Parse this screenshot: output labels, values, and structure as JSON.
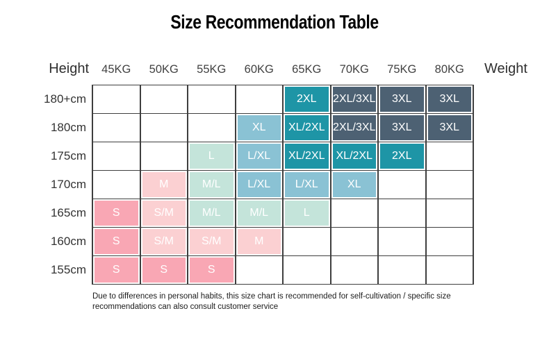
{
  "title": "Size Recommendation Table",
  "table": {
    "height_label": "Height",
    "weight_label": "Weight",
    "weights": [
      "45KG",
      "50KG",
      "55KG",
      "60KG",
      "65KG",
      "70KG",
      "75KG",
      "80KG"
    ],
    "rows": [
      {
        "height": "180+cm",
        "cells": [
          null,
          null,
          null,
          null,
          {
            "label": "2XL",
            "color": "teal"
          },
          {
            "label": "2XL/3XL",
            "color": "slate"
          },
          {
            "label": "3XL",
            "color": "slate"
          },
          {
            "label": "3XL",
            "color": "slate"
          }
        ]
      },
      {
        "height": "180cm",
        "cells": [
          null,
          null,
          null,
          {
            "label": "XL",
            "color": "blue"
          },
          {
            "label": "XL/2XL",
            "color": "teal"
          },
          {
            "label": "2XL/3XL",
            "color": "slate"
          },
          {
            "label": "3XL",
            "color": "slate"
          },
          {
            "label": "3XL",
            "color": "slate"
          }
        ]
      },
      {
        "height": "175cm",
        "cells": [
          null,
          null,
          {
            "label": "L",
            "color": "mint"
          },
          {
            "label": "L/XL",
            "color": "blue"
          },
          {
            "label": "XL/2XL",
            "color": "teal"
          },
          {
            "label": "XL/2XL",
            "color": "teal"
          },
          {
            "label": "2XL",
            "color": "teal"
          },
          null
        ]
      },
      {
        "height": "170cm",
        "cells": [
          null,
          {
            "label": "M",
            "color": "pink_light"
          },
          {
            "label": "M/L",
            "color": "mint"
          },
          {
            "label": "L/XL",
            "color": "blue"
          },
          {
            "label": "L/XL",
            "color": "blue"
          },
          {
            "label": "XL",
            "color": "blue"
          },
          null,
          null
        ]
      },
      {
        "height": "165cm",
        "cells": [
          {
            "label": "S",
            "color": "pink"
          },
          {
            "label": "S/M",
            "color": "pink_light"
          },
          {
            "label": "M/L",
            "color": "mint"
          },
          {
            "label": "M/L",
            "color": "mint"
          },
          {
            "label": "L",
            "color": "mint"
          },
          null,
          null,
          null
        ]
      },
      {
        "height": "160cm",
        "cells": [
          {
            "label": "S",
            "color": "pink"
          },
          {
            "label": "S/M",
            "color": "pink_light"
          },
          {
            "label": "S/M",
            "color": "pink_light"
          },
          {
            "label": "M",
            "color": "pink_light"
          },
          null,
          null,
          null,
          null
        ]
      },
      {
        "height": "155cm",
        "cells": [
          {
            "label": "S",
            "color": "pink"
          },
          {
            "label": "S",
            "color": "pink"
          },
          {
            "label": "S",
            "color": "pink"
          },
          null,
          null,
          null,
          null,
          null
        ]
      }
    ]
  },
  "colors": {
    "teal": "#1e95a6",
    "slate": "#4d6173",
    "blue": "#8ac2d4",
    "mint": "#c4e4da",
    "pink": "#f9a7b4",
    "pink_light": "#fbd0d2"
  },
  "footnote": "Due to differences in personal habits, this size chart is recommended for self-cultivation / specific size recommendations can also consult customer service",
  "chart_data": {
    "type": "table",
    "title": "Size Recommendation Table",
    "row_axis_label": "Height",
    "col_axis_label": "Weight",
    "columns": [
      "45KG",
      "50KG",
      "55KG",
      "60KG",
      "65KG",
      "70KG",
      "75KG",
      "80KG"
    ],
    "rows": [
      "180+cm",
      "180cm",
      "175cm",
      "170cm",
      "165cm",
      "160cm",
      "155cm"
    ],
    "values": [
      [
        null,
        null,
        null,
        null,
        "2XL",
        "2XL/3XL",
        "3XL",
        "3XL"
      ],
      [
        null,
        null,
        null,
        "XL",
        "XL/2XL",
        "2XL/3XL",
        "3XL",
        "3XL"
      ],
      [
        null,
        null,
        "L",
        "L/XL",
        "XL/2XL",
        "XL/2XL",
        "2XL",
        null
      ],
      [
        null,
        "M",
        "M/L",
        "L/XL",
        "L/XL",
        "XL",
        null,
        null
      ],
      [
        "S",
        "S/M",
        "M/L",
        "M/L",
        "L",
        null,
        null,
        null
      ],
      [
        "S",
        "S/M",
        "S/M",
        "M",
        null,
        null,
        null,
        null
      ],
      [
        "S",
        "S",
        "S",
        null,
        null,
        null,
        null,
        null
      ]
    ],
    "legend_colors": {
      "S": "#f9a7b4",
      "S/M,M": "#fbd0d2",
      "M/L,L": "#c4e4da",
      "L/XL,XL": "#8ac2d4",
      "XL/2XL,2XL": "#1e95a6",
      "2XL/3XL,3XL": "#4d6173"
    }
  }
}
